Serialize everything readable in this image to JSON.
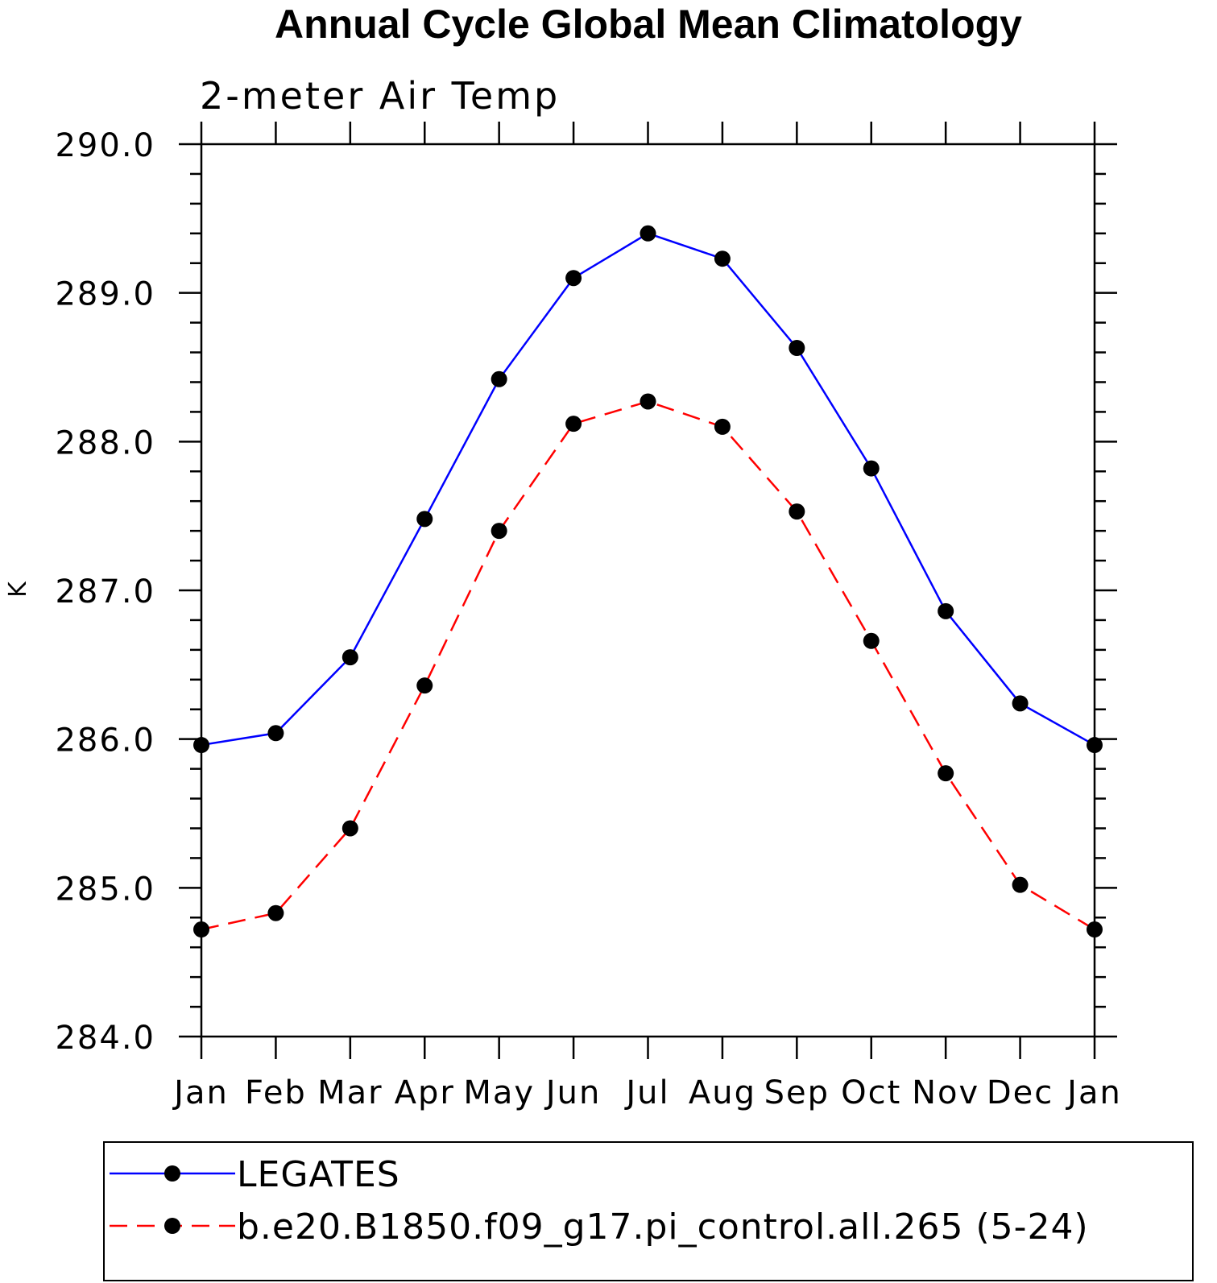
{
  "chart_data": {
    "type": "line",
    "title": "Annual Cycle Global Mean Climatology",
    "subtitle": "2-meter Air Temp",
    "xlabel": "",
    "ylabel": "K",
    "categories": [
      "Jan",
      "Feb",
      "Mar",
      "Apr",
      "May",
      "Jun",
      "Jul",
      "Aug",
      "Sep",
      "Oct",
      "Nov",
      "Dec",
      "Jan"
    ],
    "ylim": [
      284.0,
      290.0
    ],
    "yticks": [
      284.0,
      285.0,
      286.0,
      287.0,
      288.0,
      289.0,
      290.0
    ],
    "ytick_labels": [
      "284.0",
      "285.0",
      "286.0",
      "287.0",
      "288.0",
      "289.0",
      "290.0"
    ],
    "grid": false,
    "legend_position": "bottom",
    "series": [
      {
        "name": "LEGATES",
        "color": "#0000ff",
        "line_style": "solid",
        "marker": "filled-circle",
        "values": [
          285.96,
          286.04,
          286.55,
          287.48,
          288.42,
          289.1,
          289.4,
          289.23,
          288.63,
          287.82,
          286.86,
          286.24,
          285.96
        ]
      },
      {
        "name": "b.e20.B1850.f09_g17.pi_control.all.265 (5-24)",
        "color": "#ff0000",
        "line_style": "dashed",
        "marker": "filled-circle",
        "values": [
          284.72,
          284.83,
          285.4,
          286.36,
          287.4,
          288.12,
          288.27,
          288.1,
          287.53,
          286.66,
          285.77,
          285.02,
          284.72
        ]
      }
    ]
  }
}
